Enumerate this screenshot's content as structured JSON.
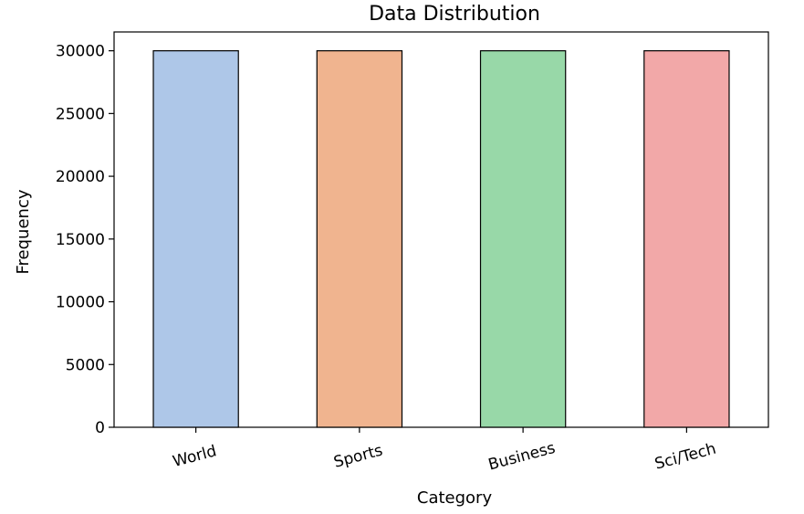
{
  "chart_data": {
    "type": "bar",
    "title": "Data Distribution",
    "xlabel": "Category",
    "ylabel": "Frequency",
    "categories": [
      "World",
      "Sports",
      "Business",
      "Sci/Tech"
    ],
    "values": [
      30000,
      30000,
      30000,
      30000
    ],
    "ylim": [
      0,
      31500
    ],
    "yticks": [
      0,
      5000,
      10000,
      15000,
      20000,
      25000,
      30000
    ],
    "colors": [
      "#aec7e8",
      "#f0b48f",
      "#98d8a8",
      "#f2a8a8"
    ],
    "bar_edge_color": "#000000",
    "grid": false,
    "legend": "none",
    "tick_rotation_deg": -15
  }
}
